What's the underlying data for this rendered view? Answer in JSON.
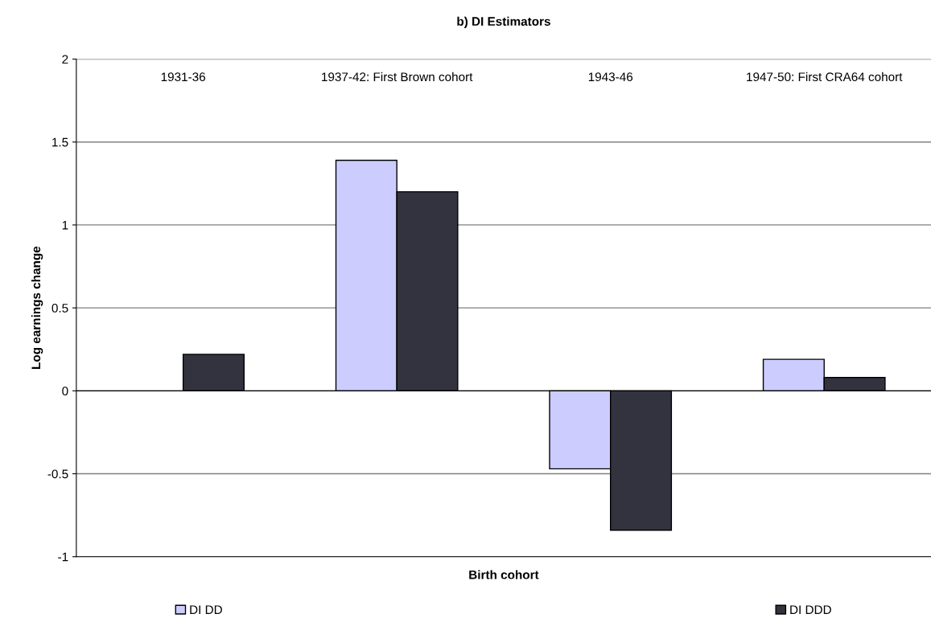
{
  "chart_data": {
    "type": "bar",
    "title": "b) DI Estimators",
    "xlabel": "Birth cohort",
    "ylabel": "Log earnings change",
    "categories": [
      "1931-36",
      "1937-42: First Brown cohort",
      "1943-46",
      "1947-50: First CRA64 cohort"
    ],
    "series": [
      {
        "name": "DI DD",
        "color": "#ccccff",
        "values": [
          null,
          1.39,
          -0.47,
          0.19
        ]
      },
      {
        "name": "DI DDD",
        "color": "#333340",
        "values": [
          0.22,
          1.2,
          -0.84,
          0.08
        ]
      }
    ],
    "ylim": [
      -1,
      2
    ],
    "yticks": [
      -1,
      -0.5,
      0,
      0.5,
      1,
      1.5,
      2
    ],
    "grid": "y",
    "legend": "bottom"
  }
}
